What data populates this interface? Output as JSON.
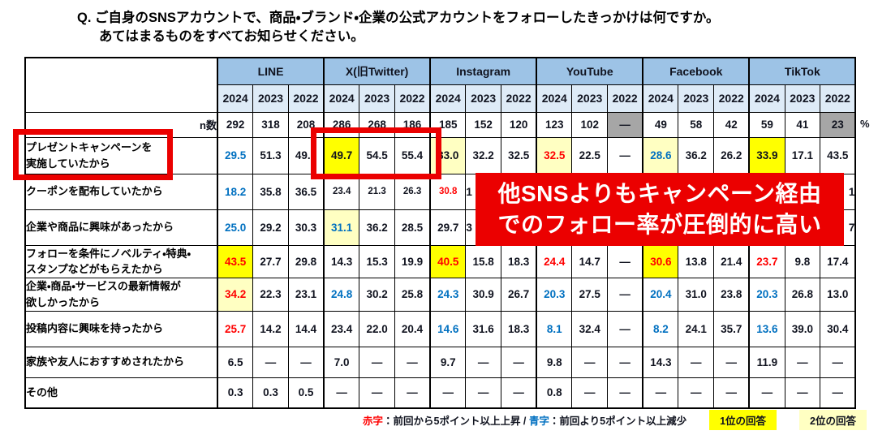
{
  "title": {
    "line1": "Q. ご自身のSNSアカウントで、商品・ブランド・企業の公式アカウントをフォローしたきっかけは何ですか。",
    "line2": "あてはまるものをすべてお知らせください。"
  },
  "colors": {
    "header_blue": "#9DC3E6",
    "year_blue": "#DEEBF7",
    "bright_yellow": "#FFFF00",
    "pale_yellow": "#FFFFC2",
    "gray": "#A6A6A6",
    "red_text": "#FF0000",
    "blue_text": "#0070C0",
    "annotation_red": "#EB0000",
    "text_dark": "#10131f"
  },
  "chart_data": {
    "type": "table",
    "title": "公式アカウントをフォローしたきっかけ",
    "column_groups": [
      "LINE",
      "X(旧Twitter)",
      "Instagram",
      "YouTube",
      "Facebook",
      "TikTok"
    ],
    "years": [
      "2024",
      "2023",
      "2022"
    ],
    "n_label": "n数",
    "unit_label": "%",
    "n_row": [
      {
        "v": "292"
      },
      {
        "v": "318"
      },
      {
        "v": "208"
      },
      {
        "v": "286"
      },
      {
        "v": "268"
      },
      {
        "v": "186"
      },
      {
        "v": "185"
      },
      {
        "v": "152"
      },
      {
        "v": "120"
      },
      {
        "v": "123"
      },
      {
        "v": "102"
      },
      {
        "v": "—",
        "b": "gray"
      },
      {
        "v": "49"
      },
      {
        "v": "58"
      },
      {
        "v": "42"
      },
      {
        "v": "59"
      },
      {
        "v": "41"
      },
      {
        "v": "23",
        "b": "gray"
      }
    ],
    "rows": [
      {
        "label": [
          "プレゼントキャンペーンを",
          "実施していたから"
        ],
        "cells": [
          {
            "v": "29.5",
            "t": "blue"
          },
          {
            "v": "51.3"
          },
          {
            "v": "49.0"
          },
          {
            "v": "49.7",
            "b": "y1"
          },
          {
            "v": "54.5"
          },
          {
            "v": "55.4"
          },
          {
            "v": "33.0",
            "b": "y2"
          },
          {
            "v": "32.2"
          },
          {
            "v": "32.5"
          },
          {
            "v": "32.5",
            "t": "red",
            "b": "y2"
          },
          {
            "v": "22.5"
          },
          {
            "v": "—"
          },
          {
            "v": "28.6",
            "t": "blue",
            "b": "y2"
          },
          {
            "v": "36.2"
          },
          {
            "v": "26.2"
          },
          {
            "v": "33.9",
            "b": "y1"
          },
          {
            "v": "17.1"
          },
          {
            "v": "43.5"
          }
        ]
      },
      {
        "label": [
          "クーポンを配布していたから"
        ],
        "cells": [
          {
            "v": "18.2",
            "t": "blue"
          },
          {
            "v": "35.8"
          },
          {
            "v": "36.5"
          },
          {
            "v": "23.4",
            "sm": 1
          },
          {
            "v": "21.3",
            "sm": 1
          },
          {
            "v": "26.3",
            "sm": 1
          },
          {
            "v": "30.8",
            "t": "red",
            "sm": 1
          },
          {
            "v": "1",
            "a": "l"
          },
          {
            "v": ""
          },
          {
            "v": ""
          },
          {
            "v": ""
          },
          {
            "v": ""
          },
          {
            "v": ""
          },
          {
            "v": ""
          },
          {
            "v": ""
          },
          {
            "v": ""
          },
          {
            "v": ""
          },
          {
            "v": "1",
            "a": "r"
          }
        ]
      },
      {
        "label": [
          "企業や商品に興味があったから"
        ],
        "cells": [
          {
            "v": "25.0",
            "t": "blue"
          },
          {
            "v": "29.2"
          },
          {
            "v": "30.3"
          },
          {
            "v": "31.1",
            "t": "blue",
            "b": "y2"
          },
          {
            "v": "36.2"
          },
          {
            "v": "28.5"
          },
          {
            "v": "29.7"
          },
          {
            "v": "3",
            "a": "l"
          },
          {
            "v": ""
          },
          {
            "v": ""
          },
          {
            "v": ""
          },
          {
            "v": ""
          },
          {
            "v": ""
          },
          {
            "v": ""
          },
          {
            "v": ""
          },
          {
            "v": ""
          },
          {
            "v": ""
          },
          {
            "v": "7",
            "a": "r"
          }
        ]
      },
      {
        "label": [
          "フォローを条件にノベルティ・特典・",
          "スタンプなどがもらえたから"
        ],
        "cells": [
          {
            "v": "43.5",
            "t": "red",
            "b": "y1"
          },
          {
            "v": "27.7"
          },
          {
            "v": "29.8"
          },
          {
            "v": "14.3"
          },
          {
            "v": "15.3"
          },
          {
            "v": "19.9"
          },
          {
            "v": "40.5",
            "t": "red",
            "b": "y1"
          },
          {
            "v": "15.8"
          },
          {
            "v": "18.3"
          },
          {
            "v": "24.4",
            "t": "red"
          },
          {
            "v": "14.7"
          },
          {
            "v": "—"
          },
          {
            "v": "30.6",
            "t": "red",
            "b": "y1"
          },
          {
            "v": "13.8"
          },
          {
            "v": "21.4"
          },
          {
            "v": "23.7",
            "t": "red"
          },
          {
            "v": "9.8"
          },
          {
            "v": "17.4"
          }
        ]
      },
      {
        "label": [
          "企業・商品・サービスの最新情報が",
          "欲しかったから"
        ],
        "cells": [
          {
            "v": "34.2",
            "t": "red",
            "b": "y2"
          },
          {
            "v": "22.3"
          },
          {
            "v": "23.1"
          },
          {
            "v": "24.8",
            "t": "blue"
          },
          {
            "v": "30.2"
          },
          {
            "v": "25.8"
          },
          {
            "v": "24.3",
            "t": "blue"
          },
          {
            "v": "30.9"
          },
          {
            "v": "26.7"
          },
          {
            "v": "20.3",
            "t": "blue"
          },
          {
            "v": "27.5"
          },
          {
            "v": "—"
          },
          {
            "v": "20.4",
            "t": "blue"
          },
          {
            "v": "31.0"
          },
          {
            "v": "23.8"
          },
          {
            "v": "20.3",
            "t": "blue"
          },
          {
            "v": "26.8"
          },
          {
            "v": "13.0"
          }
        ]
      },
      {
        "label": [
          "投稿内容に興味を持ったから"
        ],
        "cells": [
          {
            "v": "25.7",
            "t": "red"
          },
          {
            "v": "14.2"
          },
          {
            "v": "14.4"
          },
          {
            "v": "23.4"
          },
          {
            "v": "22.0"
          },
          {
            "v": "20.4"
          },
          {
            "v": "14.6",
            "t": "blue"
          },
          {
            "v": "31.6"
          },
          {
            "v": "18.3"
          },
          {
            "v": "8.1",
            "t": "blue"
          },
          {
            "v": "32.4"
          },
          {
            "v": "—"
          },
          {
            "v": "8.2",
            "t": "blue"
          },
          {
            "v": "24.1"
          },
          {
            "v": "35.7"
          },
          {
            "v": "13.6",
            "t": "blue"
          },
          {
            "v": "39.0"
          },
          {
            "v": "30.4"
          }
        ]
      },
      {
        "label": [
          "家族や友人におすすめされたから"
        ],
        "cells": [
          {
            "v": "6.5"
          },
          {
            "v": "—"
          },
          {
            "v": "—"
          },
          {
            "v": "7.0"
          },
          {
            "v": "—"
          },
          {
            "v": "—"
          },
          {
            "v": "9.7"
          },
          {
            "v": "—"
          },
          {
            "v": "—"
          },
          {
            "v": "9.8"
          },
          {
            "v": "—"
          },
          {
            "v": "—"
          },
          {
            "v": "14.3"
          },
          {
            "v": "—"
          },
          {
            "v": "—"
          },
          {
            "v": "11.9"
          },
          {
            "v": "—"
          },
          {
            "v": "—"
          }
        ]
      },
      {
        "label": [
          "その他"
        ],
        "cells": [
          {
            "v": "0.3"
          },
          {
            "v": "0.3"
          },
          {
            "v": "0.5"
          },
          {
            "v": "—"
          },
          {
            "v": "—"
          },
          {
            "v": "—"
          },
          {
            "v": "—"
          },
          {
            "v": "—"
          },
          {
            "v": "—"
          },
          {
            "v": "0.8"
          },
          {
            "v": "—"
          },
          {
            "v": "—"
          },
          {
            "v": "—"
          },
          {
            "v": "—"
          },
          {
            "v": "—"
          },
          {
            "v": "—"
          },
          {
            "v": "—"
          },
          {
            "v": "—"
          }
        ]
      }
    ]
  },
  "annotations": {
    "callout": {
      "line1": "他SNSよりもキャンペーン経由",
      "line2": "でのフォロー率が圧倒的に高い"
    }
  },
  "legend": {
    "red_label": "赤字",
    "red_text": "：前回から5ポイント以上上昇 / ",
    "blue_label": "青字",
    "blue_text": "：前回より5ポイント以上減少",
    "rank1_chip": "1位の回答",
    "rank2_chip": "2位の回答"
  }
}
